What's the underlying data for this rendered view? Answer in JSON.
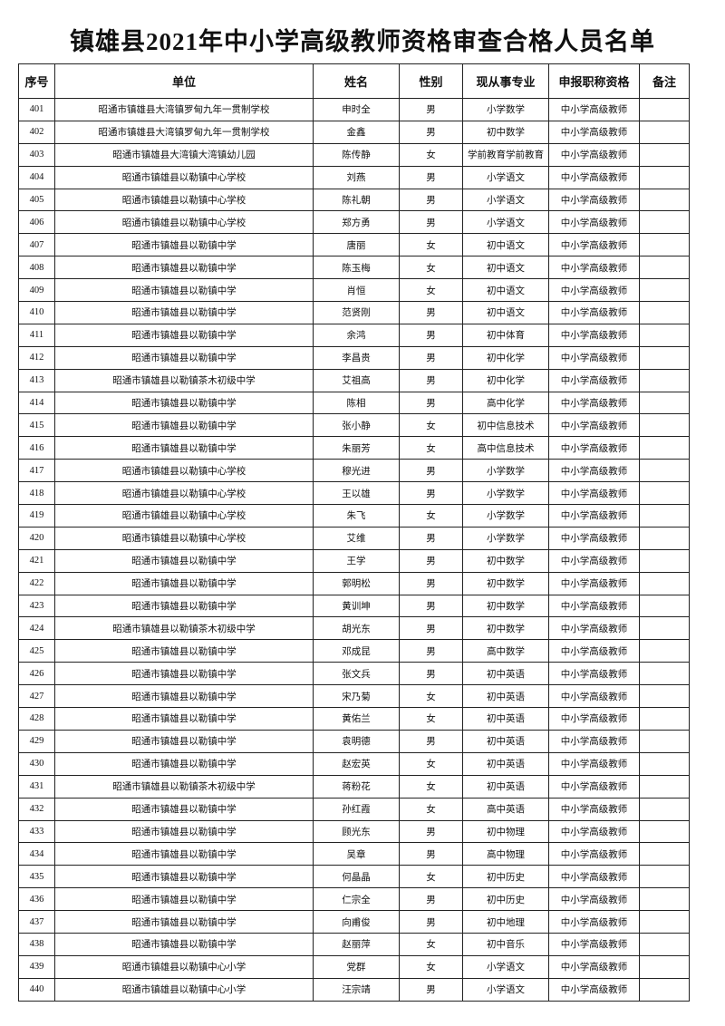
{
  "title": "镇雄县2021年中小学高级教师资格审查合格人员名单",
  "table": {
    "header": [
      "序号",
      "单位",
      "姓名",
      "性别",
      "现从事专业",
      "申报职称资格",
      "备注"
    ],
    "rows": [
      [
        "401",
        "昭通市镇雄县大湾镇罗甸九年一贯制学校",
        "申时全",
        "男",
        "小学数学",
        "中小学高级教师"
      ],
      [
        "402",
        "昭通市镇雄县大湾镇罗甸九年一贯制学校",
        "金鑫",
        "男",
        "初中数学",
        "中小学高级教师"
      ],
      [
        "403",
        "昭通市镇雄县大湾镇大湾镇幼儿园",
        "陈传静",
        "女",
        "学前教育学前教育",
        "中小学高级教师"
      ],
      [
        "404",
        "昭通市镇雄县以勒镇中心学校",
        "刘燕",
        "男",
        "小学语文",
        "中小学高级教师"
      ],
      [
        "405",
        "昭通市镇雄县以勒镇中心学校",
        "陈礼朝",
        "男",
        "小学语文",
        "中小学高级教师"
      ],
      [
        "406",
        "昭通市镇雄县以勒镇中心学校",
        "郑方勇",
        "男",
        "小学语文",
        "中小学高级教师"
      ],
      [
        "407",
        "昭通市镇雄县以勒镇中学",
        "唐丽",
        "女",
        "初中语文",
        "中小学高级教师"
      ],
      [
        "408",
        "昭通市镇雄县以勒镇中学",
        "陈玉梅",
        "女",
        "初中语文",
        "中小学高级教师"
      ],
      [
        "409",
        "昭通市镇雄县以勒镇中学",
        "肖恒",
        "女",
        "初中语文",
        "中小学高级教师"
      ],
      [
        "410",
        "昭通市镇雄县以勒镇中学",
        "范贤刚",
        "男",
        "初中语文",
        "中小学高级教师"
      ],
      [
        "411",
        "昭通市镇雄县以勒镇中学",
        "余鸿",
        "男",
        "初中体育",
        "中小学高级教师"
      ],
      [
        "412",
        "昭通市镇雄县以勒镇中学",
        "李昌贵",
        "男",
        "初中化学",
        "中小学高级教师"
      ],
      [
        "413",
        "昭通市镇雄县以勒镇茶木初级中学",
        "艾祖高",
        "男",
        "初中化学",
        "中小学高级教师"
      ],
      [
        "414",
        "昭通市镇雄县以勒镇中学",
        "陈相",
        "男",
        "高中化学",
        "中小学高级教师"
      ],
      [
        "415",
        "昭通市镇雄县以勒镇中学",
        "张小静",
        "女",
        "初中信息技术",
        "中小学高级教师"
      ],
      [
        "416",
        "昭通市镇雄县以勒镇中学",
        "朱丽芳",
        "女",
        "高中信息技术",
        "中小学高级教师"
      ],
      [
        "417",
        "昭通市镇雄县以勒镇中心学校",
        "穆光进",
        "男",
        "小学数学",
        "中小学高级教师"
      ],
      [
        "418",
        "昭通市镇雄县以勒镇中心学校",
        "王以雄",
        "男",
        "小学数学",
        "中小学高级教师"
      ],
      [
        "419",
        "昭通市镇雄县以勒镇中心学校",
        "朱飞",
        "女",
        "小学数学",
        "中小学高级教师"
      ],
      [
        "420",
        "昭通市镇雄县以勒镇中心学校",
        "艾维",
        "男",
        "小学数学",
        "中小学高级教师"
      ],
      [
        "421",
        "昭通市镇雄县以勒镇中学",
        "王学",
        "男",
        "初中数学",
        "中小学高级教师"
      ],
      [
        "422",
        "昭通市镇雄县以勒镇中学",
        "郭明松",
        "男",
        "初中数学",
        "中小学高级教师"
      ],
      [
        "423",
        "昭通市镇雄县以勒镇中学",
        "黄训坤",
        "男",
        "初中数学",
        "中小学高级教师"
      ],
      [
        "424",
        "昭通市镇雄县以勒镇茶木初级中学",
        "胡光东",
        "男",
        "初中数学",
        "中小学高级教师"
      ],
      [
        "425",
        "昭通市镇雄县以勒镇中学",
        "邓成昆",
        "男",
        "高中数学",
        "中小学高级教师"
      ],
      [
        "426",
        "昭通市镇雄县以勒镇中学",
        "张文兵",
        "男",
        "初中英语",
        "中小学高级教师"
      ],
      [
        "427",
        "昭通市镇雄县以勒镇中学",
        "宋乃菊",
        "女",
        "初中英语",
        "中小学高级教师"
      ],
      [
        "428",
        "昭通市镇雄县以勒镇中学",
        "黄佑兰",
        "女",
        "初中英语",
        "中小学高级教师"
      ],
      [
        "429",
        "昭通市镇雄县以勒镇中学",
        "袁明德",
        "男",
        "初中英语",
        "中小学高级教师"
      ],
      [
        "430",
        "昭通市镇雄县以勒镇中学",
        "赵宏英",
        "女",
        "初中英语",
        "中小学高级教师"
      ],
      [
        "431",
        "昭通市镇雄县以勒镇茶木初级中学",
        "蒋粉花",
        "女",
        "初中英语",
        "中小学高级教师"
      ],
      [
        "432",
        "昭通市镇雄县以勒镇中学",
        "孙红霞",
        "女",
        "高中英语",
        "中小学高级教师"
      ],
      [
        "433",
        "昭通市镇雄县以勒镇中学",
        "顾光东",
        "男",
        "初中物理",
        "中小学高级教师"
      ],
      [
        "434",
        "昭通市镇雄县以勒镇中学",
        "吴章",
        "男",
        "高中物理",
        "中小学高级教师"
      ],
      [
        "435",
        "昭通市镇雄县以勒镇中学",
        "何晶晶",
        "女",
        "初中历史",
        "中小学高级教师"
      ],
      [
        "436",
        "昭通市镇雄县以勒镇中学",
        "仁宗全",
        "男",
        "初中历史",
        "中小学高级教师"
      ],
      [
        "437",
        "昭通市镇雄县以勒镇中学",
        "向甫俊",
        "男",
        "初中地理",
        "中小学高级教师"
      ],
      [
        "438",
        "昭通市镇雄县以勒镇中学",
        "赵丽萍",
        "女",
        "初中音乐",
        "中小学高级教师"
      ],
      [
        "439",
        "昭通市镇雄县以勒镇中心小学",
        "党群",
        "女",
        "小学语文",
        "中小学高级教师"
      ],
      [
        "440",
        "昭通市镇雄县以勒镇中心小学",
        "汪宗靖",
        "男",
        "小学语文",
        "中小学高级教师"
      ]
    ]
  }
}
